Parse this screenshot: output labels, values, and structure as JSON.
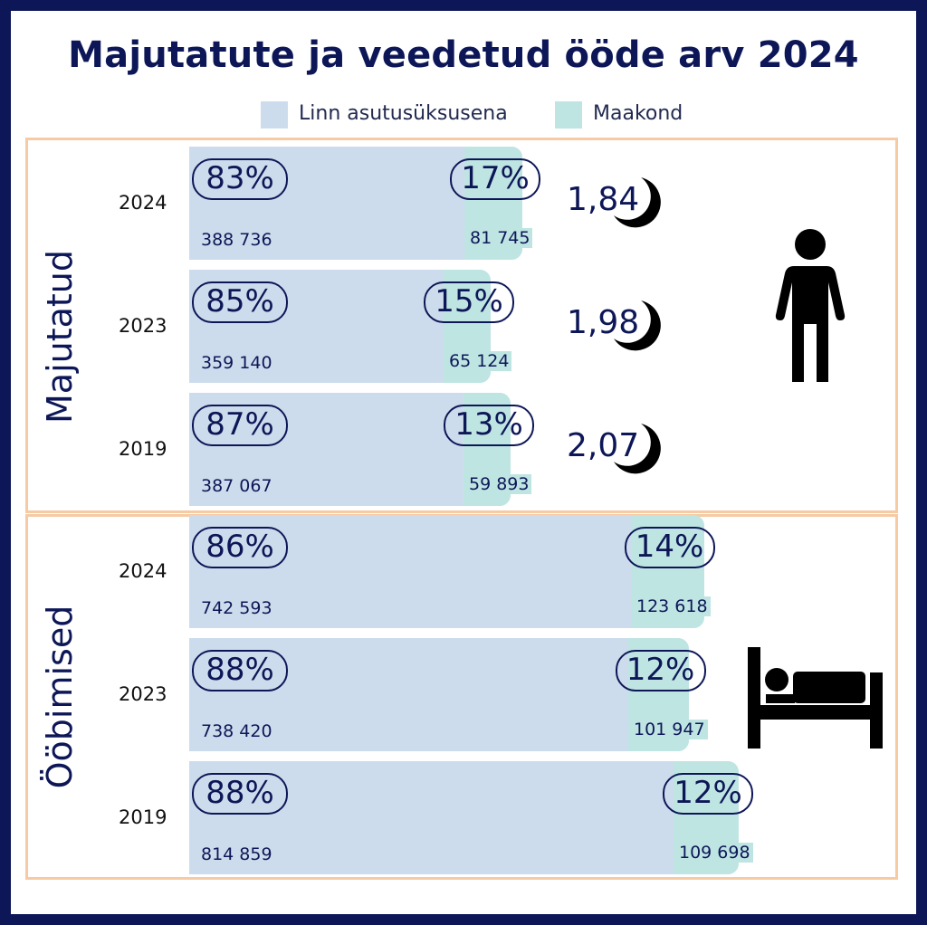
{
  "title": "Majutatute ja veedetud ööde arv 2024",
  "legend": [
    {
      "label": "Linn asutusüksusena",
      "color": "#cddcec"
    },
    {
      "label": "Maakond",
      "color": "#bfe5e3"
    }
  ],
  "chart_data": [
    {
      "type": "bar",
      "section_label": "Majutatud",
      "categories": [
        "2024",
        "2023",
        "2019"
      ],
      "series": [
        {
          "name": "Linn asutusüksusena",
          "values": [
            388736,
            359140,
            387067
          ],
          "percent": [
            "83%",
            "85%",
            "87%"
          ],
          "value_labels": [
            "388 736",
            "359 140",
            "387 067"
          ]
        },
        {
          "name": "Maakond",
          "values": [
            81745,
            65124,
            59893
          ],
          "percent": [
            "17%",
            "15%",
            "13%"
          ],
          "value_labels": [
            "81 745",
            "65 124",
            "59 893"
          ]
        }
      ],
      "nights": [
        "1,84",
        "1,98",
        "2,07"
      ],
      "icon": "person-icon"
    },
    {
      "type": "bar",
      "section_label": "Ööbimised",
      "categories": [
        "2024",
        "2023",
        "2019"
      ],
      "series": [
        {
          "name": "Linn asutusüksusena",
          "values": [
            742593,
            738420,
            814859
          ],
          "percent": [
            "86%",
            "88%",
            "88%"
          ],
          "value_labels": [
            "742 593",
            "738 420",
            "814 859"
          ]
        },
        {
          "name": "Maakond",
          "values": [
            123618,
            101947,
            109698
          ],
          "percent": [
            "14%",
            "12%",
            "12%"
          ],
          "value_labels": [
            "123 618",
            "101 947",
            "109 698"
          ]
        }
      ],
      "icon": "bed-icon"
    }
  ]
}
